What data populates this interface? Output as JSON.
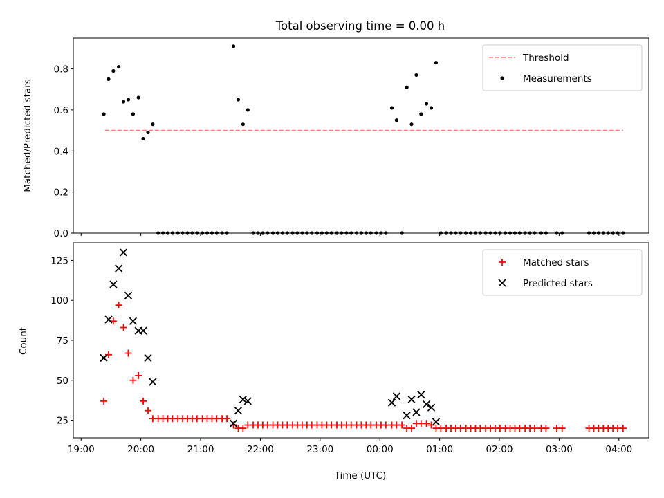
{
  "chart_data": [
    {
      "type": "scatter",
      "title": "Total observing time = 0.00 h",
      "xlabel": "",
      "ylabel": "Matched/Predicted stars",
      "xlim": [
        18.87,
        28.5
      ],
      "ylim": [
        0,
        0.95
      ],
      "yticks": [
        0.0,
        0.2,
        0.4,
        0.6,
        0.8
      ],
      "ytick_labels": [
        "0.0",
        "0.2",
        "0.4",
        "0.6",
        "0.8"
      ],
      "grid": false,
      "legend_position": "upper right",
      "series": [
        {
          "name": "Threshold",
          "kind": "line",
          "style": "dashed",
          "color": "#ff7b7b",
          "x": [
            19.4,
            28.07
          ],
          "y": [
            0.5,
            0.5
          ]
        },
        {
          "name": "Measurements",
          "kind": "scatter",
          "marker": "dot",
          "color": "#000000",
          "x": [
            19.38,
            19.46,
            19.54,
            19.63,
            19.71,
            19.79,
            19.87,
            19.96,
            20.04,
            20.12,
            20.2,
            20.29,
            20.37,
            20.45,
            20.53,
            20.62,
            20.7,
            20.78,
            20.86,
            20.94,
            21.03,
            21.11,
            21.19,
            21.27,
            21.36,
            21.44,
            21.55,
            21.63,
            21.71,
            21.79,
            21.88,
            21.96,
            22.04,
            22.12,
            22.21,
            22.29,
            22.37,
            22.45,
            22.54,
            22.62,
            22.7,
            22.78,
            22.86,
            22.95,
            23.03,
            23.11,
            23.19,
            23.28,
            23.36,
            23.44,
            23.52,
            23.61,
            23.69,
            23.77,
            23.85,
            23.94,
            24.02,
            24.1,
            24.2,
            24.28,
            24.37,
            24.45,
            24.53,
            24.61,
            24.69,
            24.78,
            24.86,
            24.94,
            25.02,
            25.11,
            25.19,
            25.27,
            25.35,
            25.44,
            25.52,
            25.6,
            25.68,
            25.77,
            25.85,
            25.93,
            26.01,
            26.1,
            26.18,
            26.26,
            26.34,
            26.43,
            26.51,
            26.59,
            26.7,
            26.78,
            26.96,
            27.05,
            27.5,
            27.58,
            27.66,
            27.74,
            27.82,
            27.9,
            27.98,
            28.07
          ],
          "y": [
            0.58,
            0.75,
            0.79,
            0.81,
            0.64,
            0.65,
            0.58,
            0.66,
            0.46,
            0.49,
            0.53,
            0,
            0,
            0,
            0,
            0,
            0,
            0,
            0,
            0,
            0,
            0,
            0,
            0,
            0,
            0,
            0.91,
            0.65,
            0.53,
            0.6,
            0,
            0,
            0,
            0,
            0,
            0,
            0,
            0,
            0,
            0,
            0,
            0,
            0,
            0,
            0,
            0,
            0,
            0,
            0,
            0,
            0,
            0,
            0,
            0,
            0,
            0,
            0,
            0,
            0.61,
            0.55,
            0,
            0.71,
            0.53,
            0.77,
            0.58,
            0.63,
            0.61,
            0.83,
            0,
            0,
            0,
            0,
            0,
            0,
            0,
            0,
            0,
            0,
            0,
            0,
            0,
            0,
            0,
            0,
            0,
            0,
            0,
            0,
            0,
            0,
            0,
            0,
            0,
            0,
            0,
            0,
            0,
            0,
            0,
            0
          ]
        }
      ]
    },
    {
      "type": "scatter",
      "title": "",
      "xlabel": "Time (UTC)",
      "ylabel": "Count",
      "xlim": [
        18.87,
        28.5
      ],
      "ylim": [
        14,
        136
      ],
      "yticks": [
        25,
        50,
        75,
        100,
        125
      ],
      "ytick_labels": [
        "25",
        "50",
        "75",
        "100",
        "125"
      ],
      "xticks": [
        19,
        20,
        21,
        22,
        23,
        24,
        25,
        26,
        27,
        28
      ],
      "xtick_labels": [
        "19:00",
        "20:00",
        "21:00",
        "22:00",
        "23:00",
        "00:00",
        "01:00",
        "02:00",
        "03:00",
        "04:00"
      ],
      "grid": false,
      "legend_position": "upper right",
      "series": [
        {
          "name": "Matched stars",
          "marker": "plus",
          "color": "#ff0000",
          "x": [
            19.38,
            19.46,
            19.54,
            19.63,
            19.71,
            19.79,
            19.87,
            19.96,
            20.04,
            20.12,
            20.2,
            20.29,
            20.37,
            20.45,
            20.53,
            20.62,
            20.7,
            20.78,
            20.86,
            20.94,
            21.03,
            21.11,
            21.19,
            21.27,
            21.36,
            21.44,
            21.55,
            21.63,
            21.71,
            21.79,
            21.88,
            21.96,
            22.04,
            22.12,
            22.21,
            22.29,
            22.37,
            22.45,
            22.54,
            22.62,
            22.7,
            22.78,
            22.86,
            22.95,
            23.03,
            23.11,
            23.19,
            23.28,
            23.36,
            23.44,
            23.52,
            23.61,
            23.69,
            23.77,
            23.85,
            23.94,
            24.02,
            24.1,
            24.2,
            24.28,
            24.37,
            24.45,
            24.53,
            24.61,
            24.69,
            24.78,
            24.86,
            24.94,
            25.02,
            25.11,
            25.19,
            25.27,
            25.35,
            25.44,
            25.52,
            25.6,
            25.68,
            25.77,
            25.85,
            25.93,
            26.01,
            26.1,
            26.18,
            26.26,
            26.34,
            26.43,
            26.51,
            26.59,
            26.7,
            26.78,
            26.96,
            27.05,
            27.5,
            27.58,
            27.66,
            27.74,
            27.82,
            27.9,
            27.98,
            28.07
          ],
          "y": [
            37,
            66,
            87,
            97,
            83,
            67,
            50,
            53,
            37,
            31,
            26,
            26,
            26,
            26,
            26,
            26,
            26,
            26,
            26,
            26,
            26,
            26,
            26,
            26,
            26,
            26,
            22,
            20,
            20,
            22,
            22,
            22,
            22,
            22,
            22,
            22,
            22,
            22,
            22,
            22,
            22,
            22,
            22,
            22,
            22,
            22,
            22,
            22,
            22,
            22,
            22,
            22,
            22,
            22,
            22,
            22,
            22,
            22,
            22,
            22,
            22,
            20,
            20,
            23,
            23,
            23,
            22,
            20,
            20,
            20,
            20,
            20,
            20,
            20,
            20,
            20,
            20,
            20,
            20,
            20,
            20,
            20,
            20,
            20,
            20,
            20,
            20,
            20,
            20,
            20,
            20,
            20,
            20,
            20,
            20,
            20,
            20,
            20,
            20,
            20
          ]
        },
        {
          "name": "Predicted stars",
          "marker": "x",
          "color": "#000000",
          "x": [
            19.38,
            19.46,
            19.54,
            19.63,
            19.71,
            19.79,
            19.87,
            19.96,
            20.04,
            20.12,
            20.2,
            21.55,
            21.63,
            21.71,
            21.79,
            24.2,
            24.28,
            24.45,
            24.53,
            24.61,
            24.69,
            24.78,
            24.86,
            24.94
          ],
          "y": [
            64,
            88,
            110,
            120,
            130,
            103,
            87,
            81,
            81,
            64,
            49,
            23,
            31,
            38,
            37,
            36,
            40,
            28,
            38,
            30,
            41,
            35,
            33,
            24
          ]
        }
      ]
    }
  ]
}
